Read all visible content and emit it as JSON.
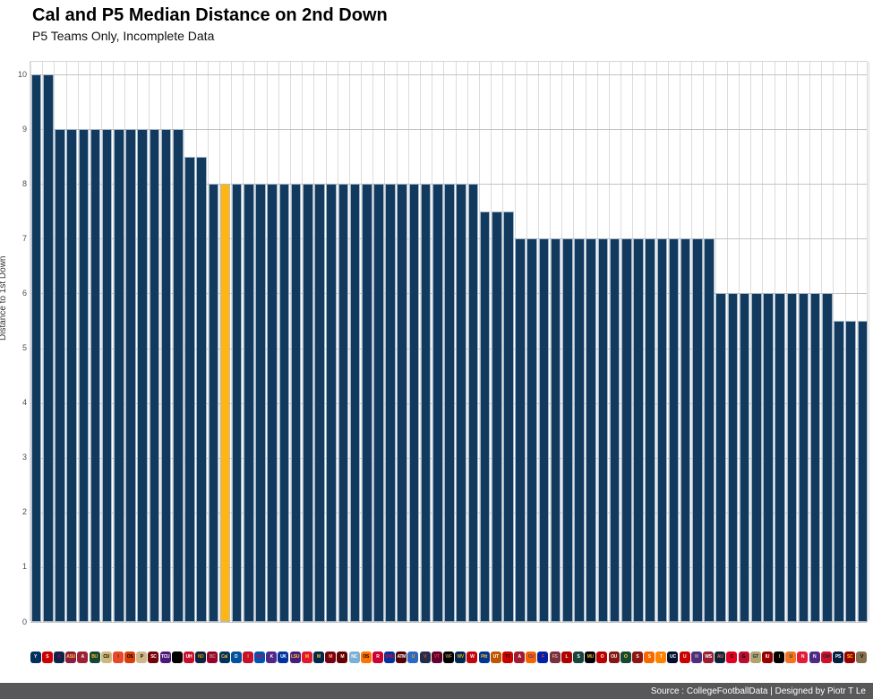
{
  "header": {
    "title": "Cal and P5 Median Distance on 2nd Down",
    "subtitle": "P5 Teams Only, Incomplete Data"
  },
  "footer": {
    "source_line": "Source : CollegeFootballData | Designed by Piotr T Le"
  },
  "colors": {
    "bar_navy": "#123a5f",
    "bar_highlight_gold": "#ffb612",
    "grid_vertical": "#dcdcdc",
    "grid_horizontal": "#c4c4c4",
    "footer_grey": "#58585a"
  },
  "chart_data": {
    "type": "bar",
    "title": "Cal and P5 Median Distance on 2nd Down",
    "subtitle": "P5 Teams Only, Incomplete Data",
    "xlabel": "",
    "ylabel": "Distance to 1st Down",
    "ylim": [
      0,
      10.2
    ],
    "yticks": [
      0,
      1,
      2,
      3,
      4,
      5,
      6,
      7,
      8,
      9,
      10
    ],
    "grid": true,
    "legend": "none",
    "highlight": {
      "team": "California",
      "color": "#ffb612"
    },
    "teams": [
      {
        "name": "BYU",
        "abbr": "Y",
        "value": 10,
        "bg": "#002E5D",
        "fg": "#ffffff"
      },
      {
        "name": "NC State",
        "abbr": "S",
        "value": 10,
        "bg": "#CC0000",
        "fg": "#ffffff"
      },
      {
        "name": "Arizona",
        "abbr": "A",
        "value": 9,
        "bg": "#0C234B",
        "fg": "#AB0520"
      },
      {
        "name": "Arizona State",
        "abbr": "ASU",
        "value": 9,
        "bg": "#8C1D40",
        "fg": "#FFC627"
      },
      {
        "name": "Arkansas",
        "abbr": "A",
        "value": 9,
        "bg": "#9D2235",
        "fg": "#ffffff"
      },
      {
        "name": "Baylor",
        "abbr": "BU",
        "value": 9,
        "bg": "#154734",
        "fg": "#FFB81C"
      },
      {
        "name": "Colorado",
        "abbr": "CU",
        "value": 9,
        "bg": "#CFB87C",
        "fg": "#000000"
      },
      {
        "name": "Illinois",
        "abbr": "I",
        "value": 9,
        "bg": "#E84A27",
        "fg": "#13294B"
      },
      {
        "name": "Oregon State",
        "abbr": "OS",
        "value": 9,
        "bg": "#D73F09",
        "fg": "#000000"
      },
      {
        "name": "Purdue",
        "abbr": "P",
        "value": 9,
        "bg": "#CEB888",
        "fg": "#000000"
      },
      {
        "name": "South Carolina",
        "abbr": "SC",
        "value": 9,
        "bg": "#73000A",
        "fg": "#ffffff"
      },
      {
        "name": "TCU",
        "abbr": "TCU",
        "value": 9,
        "bg": "#4D1979",
        "fg": "#ffffff"
      },
      {
        "name": "UCF",
        "abbr": "UCF",
        "value": 9,
        "bg": "#000000",
        "fg": "#B2932"
      },
      {
        "name": "Houston",
        "abbr": "UH",
        "value": 8.5,
        "bg": "#C8102E",
        "fg": "#ffffff"
      },
      {
        "name": "Notre Dame",
        "abbr": "ND",
        "value": 8.5,
        "bg": "#0C2340",
        "fg": "#C99700"
      },
      {
        "name": "Boston College",
        "abbr": "BC",
        "value": 8,
        "bg": "#98002E",
        "fg": "#BC9B6A"
      },
      {
        "name": "California",
        "abbr": "Cal",
        "value": 8,
        "bg": "#003262",
        "fg": "#FDB515"
      },
      {
        "name": "Duke",
        "abbr": "D",
        "value": 8,
        "bg": "#00539B",
        "fg": "#ffffff"
      },
      {
        "name": "Iowa State",
        "abbr": "I",
        "value": 8,
        "bg": "#C8102E",
        "fg": "#F1BE48"
      },
      {
        "name": "Kansas",
        "abbr": "KU",
        "value": 8,
        "bg": "#0051BA",
        "fg": "#E8000D"
      },
      {
        "name": "Kansas State",
        "abbr": "K",
        "value": 8,
        "bg": "#512888",
        "fg": "#ffffff"
      },
      {
        "name": "Kentucky",
        "abbr": "UK",
        "value": 8,
        "bg": "#0033A0",
        "fg": "#ffffff"
      },
      {
        "name": "LSU",
        "abbr": "LSU",
        "value": 8,
        "bg": "#461D7C",
        "fg": "#FDD023"
      },
      {
        "name": "Maryland",
        "abbr": "M",
        "value": 8,
        "bg": "#E21833",
        "fg": "#FFD520"
      },
      {
        "name": "Michigan",
        "abbr": "M",
        "value": 8,
        "bg": "#00274C",
        "fg": "#FFCB05"
      },
      {
        "name": "Minnesota",
        "abbr": "M",
        "value": 8,
        "bg": "#7A0019",
        "fg": "#FFCC33"
      },
      {
        "name": "Mississippi State",
        "abbr": "M",
        "value": 8,
        "bg": "#660000",
        "fg": "#ffffff"
      },
      {
        "name": "North Carolina",
        "abbr": "NC",
        "value": 8,
        "bg": "#7BAFD4",
        "fg": "#ffffff"
      },
      {
        "name": "Oklahoma State",
        "abbr": "OS",
        "value": 8,
        "bg": "#FF7300",
        "fg": "#000000"
      },
      {
        "name": "Rutgers",
        "abbr": "R",
        "value": 8,
        "bg": "#CC0033",
        "fg": "#ffffff"
      },
      {
        "name": "SMU",
        "abbr": "SMU",
        "value": 8,
        "bg": "#0033A0",
        "fg": "#C8102E"
      },
      {
        "name": "Texas A&M",
        "abbr": "ATM",
        "value": 8,
        "bg": "#500000",
        "fg": "#ffffff"
      },
      {
        "name": "UCLA",
        "abbr": "U",
        "value": 8,
        "bg": "#2D68C4",
        "fg": "#F2A900"
      },
      {
        "name": "Virginia",
        "abbr": "V",
        "value": 8,
        "bg": "#232D4B",
        "fg": "#F84C1E"
      },
      {
        "name": "Virginia Tech",
        "abbr": "VT",
        "value": 8,
        "bg": "#630031",
        "fg": "#CF4420"
      },
      {
        "name": "Wake Forest",
        "abbr": "WF",
        "value": 8,
        "bg": "#000000",
        "fg": "#9E7E38"
      },
      {
        "name": "West Virginia",
        "abbr": "WV",
        "value": 8,
        "bg": "#002855",
        "fg": "#EAAA00"
      },
      {
        "name": "Wisconsin",
        "abbr": "W",
        "value": 8,
        "bg": "#C5050C",
        "fg": "#ffffff"
      },
      {
        "name": "Pittsburgh",
        "abbr": "Pitt",
        "value": 7.5,
        "bg": "#003594",
        "fg": "#FFB81C"
      },
      {
        "name": "Texas",
        "abbr": "UT",
        "value": 7.5,
        "bg": "#BF5700",
        "fg": "#ffffff"
      },
      {
        "name": "Texas Tech",
        "abbr": "TT",
        "value": 7.5,
        "bg": "#CC0000",
        "fg": "#000000"
      },
      {
        "name": "Alabama",
        "abbr": "A",
        "value": 7,
        "bg": "#9E1B32",
        "fg": "#ffffff"
      },
      {
        "name": "Clemson",
        "abbr": "CU",
        "value": 7,
        "bg": "#F56600",
        "fg": "#522D80"
      },
      {
        "name": "Florida",
        "abbr": "F",
        "value": 7,
        "bg": "#0021A5",
        "fg": "#FA4616"
      },
      {
        "name": "Florida State",
        "abbr": "FS",
        "value": 7,
        "bg": "#782F40",
        "fg": "#CEB888"
      },
      {
        "name": "Louisville",
        "abbr": "L",
        "value": 7,
        "bg": "#AD0000",
        "fg": "#ffffff"
      },
      {
        "name": "Michigan State",
        "abbr": "S",
        "value": 7,
        "bg": "#18453B",
        "fg": "#ffffff"
      },
      {
        "name": "Missouri",
        "abbr": "MU",
        "value": 7,
        "bg": "#000000",
        "fg": "#F1B82D"
      },
      {
        "name": "Ohio State",
        "abbr": "O",
        "value": 7,
        "bg": "#BB0000",
        "fg": "#ffffff"
      },
      {
        "name": "Oklahoma",
        "abbr": "OU",
        "value": 7,
        "bg": "#841617",
        "fg": "#FDF9D8"
      },
      {
        "name": "Oregon",
        "abbr": "O",
        "value": 7,
        "bg": "#154733",
        "fg": "#FEE123"
      },
      {
        "name": "Stanford",
        "abbr": "S",
        "value": 7,
        "bg": "#8C1515",
        "fg": "#ffffff"
      },
      {
        "name": "Syracuse",
        "abbr": "S",
        "value": 7,
        "bg": "#F76900",
        "fg": "#ffffff"
      },
      {
        "name": "Tennessee",
        "abbr": "T",
        "value": 7,
        "bg": "#FF8200",
        "fg": "#ffffff"
      },
      {
        "name": "UConn",
        "abbr": "UC",
        "value": 7,
        "bg": "#000E2F",
        "fg": "#ffffff"
      },
      {
        "name": "Utah",
        "abbr": "U",
        "value": 7,
        "bg": "#CC0000",
        "fg": "#ffffff"
      },
      {
        "name": "Washington",
        "abbr": "W",
        "value": 7,
        "bg": "#4B2E83",
        "fg": "#B7A57A"
      },
      {
        "name": "Washington State",
        "abbr": "WS",
        "value": 7,
        "bg": "#981E32",
        "fg": "#ffffff"
      },
      {
        "name": "Auburn",
        "abbr": "AU",
        "value": 6,
        "bg": "#0C2340",
        "fg": "#E87722"
      },
      {
        "name": "Cincinnati",
        "abbr": "C",
        "value": 6,
        "bg": "#E00122",
        "fg": "#000000"
      },
      {
        "name": "Georgia",
        "abbr": "G",
        "value": 6,
        "bg": "#BA0C2F",
        "fg": "#000000"
      },
      {
        "name": "Georgia Tech",
        "abbr": "GT",
        "value": 6,
        "bg": "#B3A369",
        "fg": "#003057"
      },
      {
        "name": "Indiana",
        "abbr": "IU",
        "value": 6,
        "bg": "#990000",
        "fg": "#ffffff"
      },
      {
        "name": "Iowa",
        "abbr": "I",
        "value": 6,
        "bg": "#000000",
        "fg": "#FFCD00"
      },
      {
        "name": "Miami",
        "abbr": "U",
        "value": 6,
        "bg": "#F47321",
        "fg": "#005030"
      },
      {
        "name": "Nebraska",
        "abbr": "N",
        "value": 6,
        "bg": "#E41C38",
        "fg": "#ffffff"
      },
      {
        "name": "Northwestern",
        "abbr": "N",
        "value": 6,
        "bg": "#4E2A84",
        "fg": "#ffffff"
      },
      {
        "name": "Ole Miss",
        "abbr": "OM",
        "value": 6,
        "bg": "#CE1126",
        "fg": "#14213D"
      },
      {
        "name": "Penn State",
        "abbr": "PS",
        "value": 5.5,
        "bg": "#041E42",
        "fg": "#ffffff"
      },
      {
        "name": "USC",
        "abbr": "SC",
        "value": 5.5,
        "bg": "#990000",
        "fg": "#FFCC00"
      },
      {
        "name": "Vanderbilt",
        "abbr": "V",
        "value": 5.5,
        "bg": "#866D4B",
        "fg": "#000000"
      }
    ]
  }
}
